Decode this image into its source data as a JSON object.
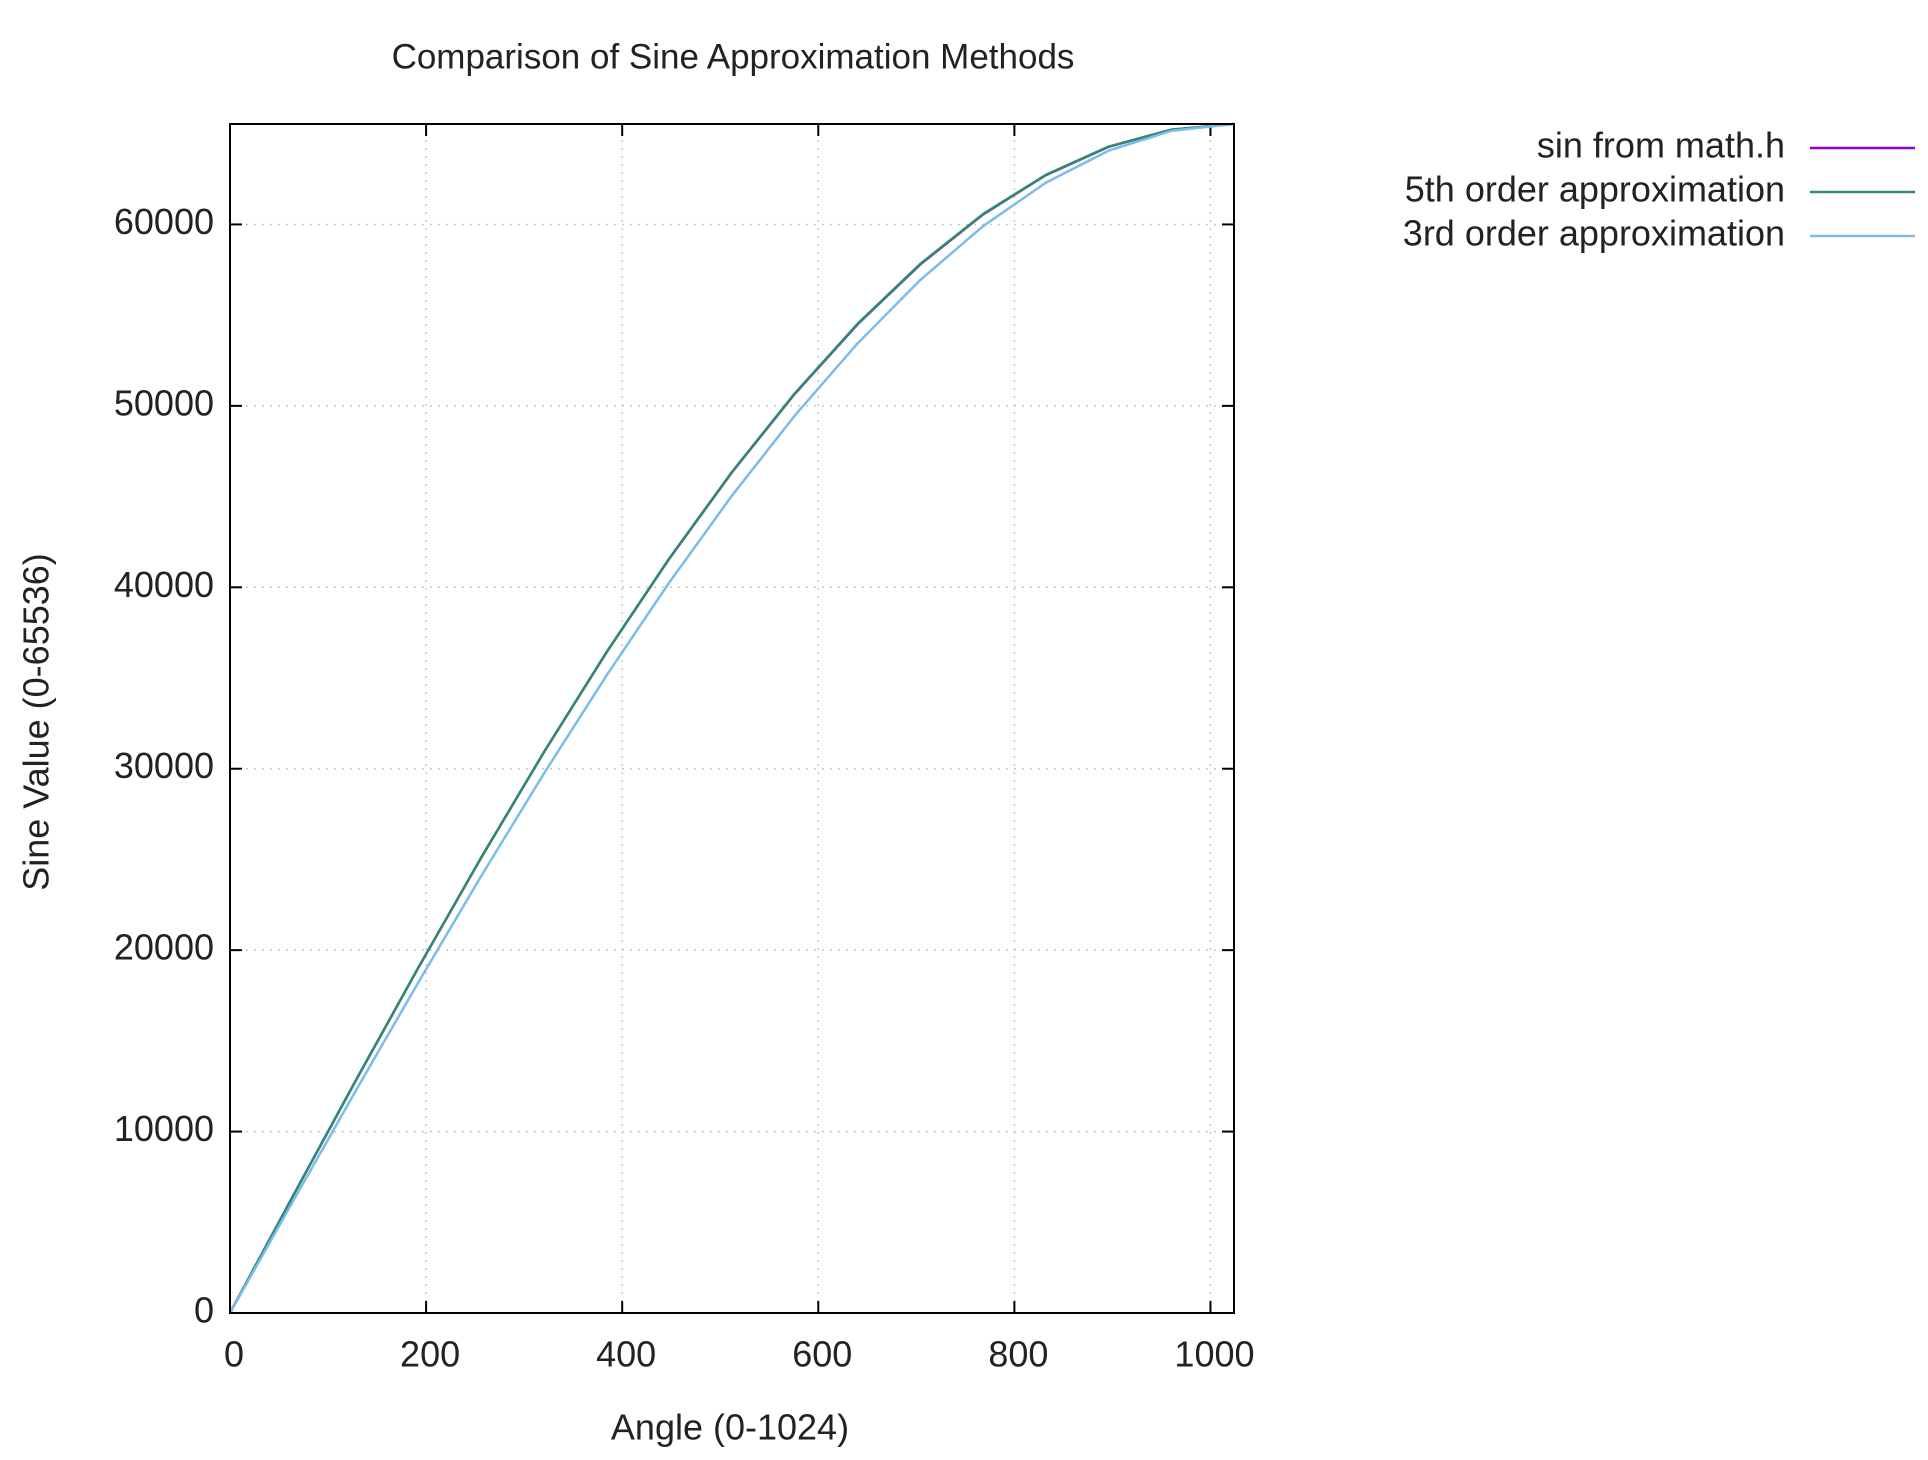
{
  "chart_data": {
    "type": "line",
    "title": "Comparison of Sine Approximation Methods",
    "x_label": "Angle (0-1024)",
    "y_label": "Sine Value (0-65536)",
    "x": [
      0,
      64,
      128,
      192,
      256,
      320,
      384,
      448,
      512,
      576,
      640,
      704,
      768,
      832,
      896,
      960,
      1024
    ],
    "series": [
      {
        "name": "sin from math.h",
        "color": "#9400d3",
        "values": [
          0,
          6424,
          12785,
          19024,
          25080,
          30893,
          36410,
          41575,
          46341,
          50660,
          54491,
          57797,
          60547,
          62714,
          64277,
          65220,
          65536
        ]
      },
      {
        "name": "5th order approximation",
        "color": "#2e8b6e",
        "values": [
          0,
          6424,
          12786,
          19026,
          25084,
          30901,
          36421,
          41591,
          46361,
          50684,
          54517,
          57823,
          60570,
          62731,
          64287,
          65224,
          65536
        ]
      },
      {
        "name": "3rd order approximation",
        "color": "#7cbcec",
        "values": [
          0,
          6136,
          12224,
          18216,
          24064,
          29720,
          35136,
          40264,
          45056,
          49464,
          53440,
          56936,
          59904,
          62296,
          64064,
          65160,
          65536
        ]
      }
    ],
    "xlim": [
      0,
      1024
    ],
    "xticks": [
      0,
      200,
      400,
      600,
      800,
      1000
    ],
    "ylim": [
      0,
      65536
    ],
    "yticks": [
      0,
      10000,
      20000,
      30000,
      40000,
      50000,
      60000
    ],
    "grid": true,
    "legend": "top-right"
  }
}
